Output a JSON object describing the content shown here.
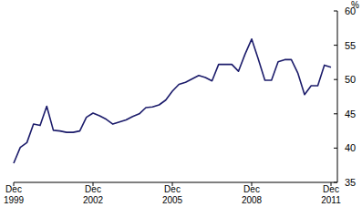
{
  "chart_data": {
    "type": "line",
    "y_label": "%",
    "categories": [
      "Dec 1999",
      null,
      null,
      null,
      null,
      null,
      null,
      null,
      null,
      null,
      null,
      null,
      "Dec 2002",
      null,
      null,
      null,
      null,
      null,
      null,
      null,
      null,
      null,
      null,
      null,
      "Dec 2005",
      null,
      null,
      null,
      null,
      null,
      null,
      null,
      null,
      null,
      null,
      null,
      "Dec 2008",
      null,
      null,
      null,
      null,
      null,
      null,
      null,
      null,
      null,
      null,
      null,
      "Dec 2011"
    ],
    "values": [
      37.8,
      40.1,
      40.8,
      43.5,
      43.3,
      46.1,
      42.6,
      42.5,
      42.3,
      42.3,
      42.5,
      44.5,
      45.1,
      44.7,
      44.2,
      43.5,
      43.8,
      44.1,
      44.6,
      45.0,
      45.9,
      46.0,
      46.3,
      47.0,
      48.3,
      49.3,
      49.6,
      50.1,
      50.6,
      50.3,
      49.8,
      52.2,
      52.2,
      52.2,
      51.2,
      53.7,
      55.9,
      53.0,
      49.9,
      49.9,
      52.6,
      52.9,
      52.9,
      50.9,
      47.8,
      49.1,
      49.1,
      52.1,
      51.8
    ],
    "color": "#1c1c6b",
    "ylim": [
      35,
      60
    ],
    "yticks": [
      35,
      40,
      45,
      50,
      55,
      60
    ],
    "grid": false
  }
}
